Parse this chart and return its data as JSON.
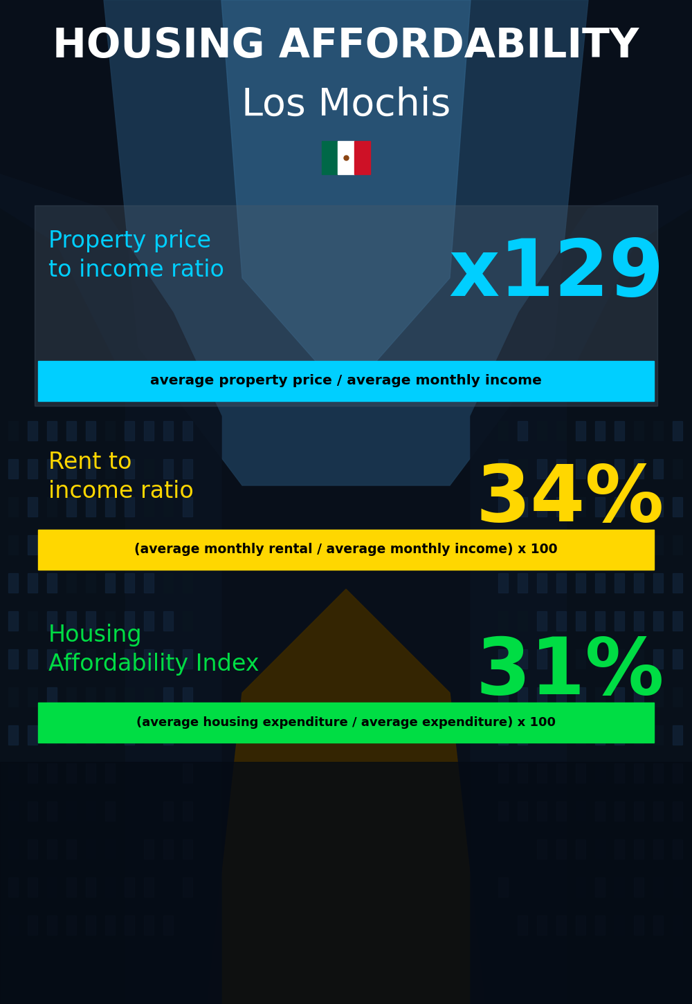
{
  "title_line1": "HOUSING AFFORDABILITY",
  "title_line2": "Los Mochis",
  "bg_color": "#0a1628",
  "section1_label": "Property price\nto income ratio",
  "section1_value": "x129",
  "section1_label_color": "#00cfff",
  "section1_value_color": "#00cfff",
  "section1_bar_text": "average property price / average monthly income",
  "section1_bar_color": "#00cfff",
  "section2_label": "Rent to\nincome ratio",
  "section2_value": "34%",
  "section2_label_color": "#ffd700",
  "section2_value_color": "#ffd700",
  "section2_bar_text": "(average monthly rental / average monthly income) x 100",
  "section2_bar_color": "#ffd700",
  "section3_label": "Housing\nAffordability Index",
  "section3_value": "31%",
  "section3_label_color": "#00dd44",
  "section3_value_color": "#00dd44",
  "section3_bar_text": "(average housing expenditure / average expenditure) x 100",
  "section3_bar_color": "#00dd44",
  "flag_green": "#006847",
  "flag_white": "#FFFFFF",
  "flag_red": "#CE1126",
  "flag_eagle": "#8B4513"
}
